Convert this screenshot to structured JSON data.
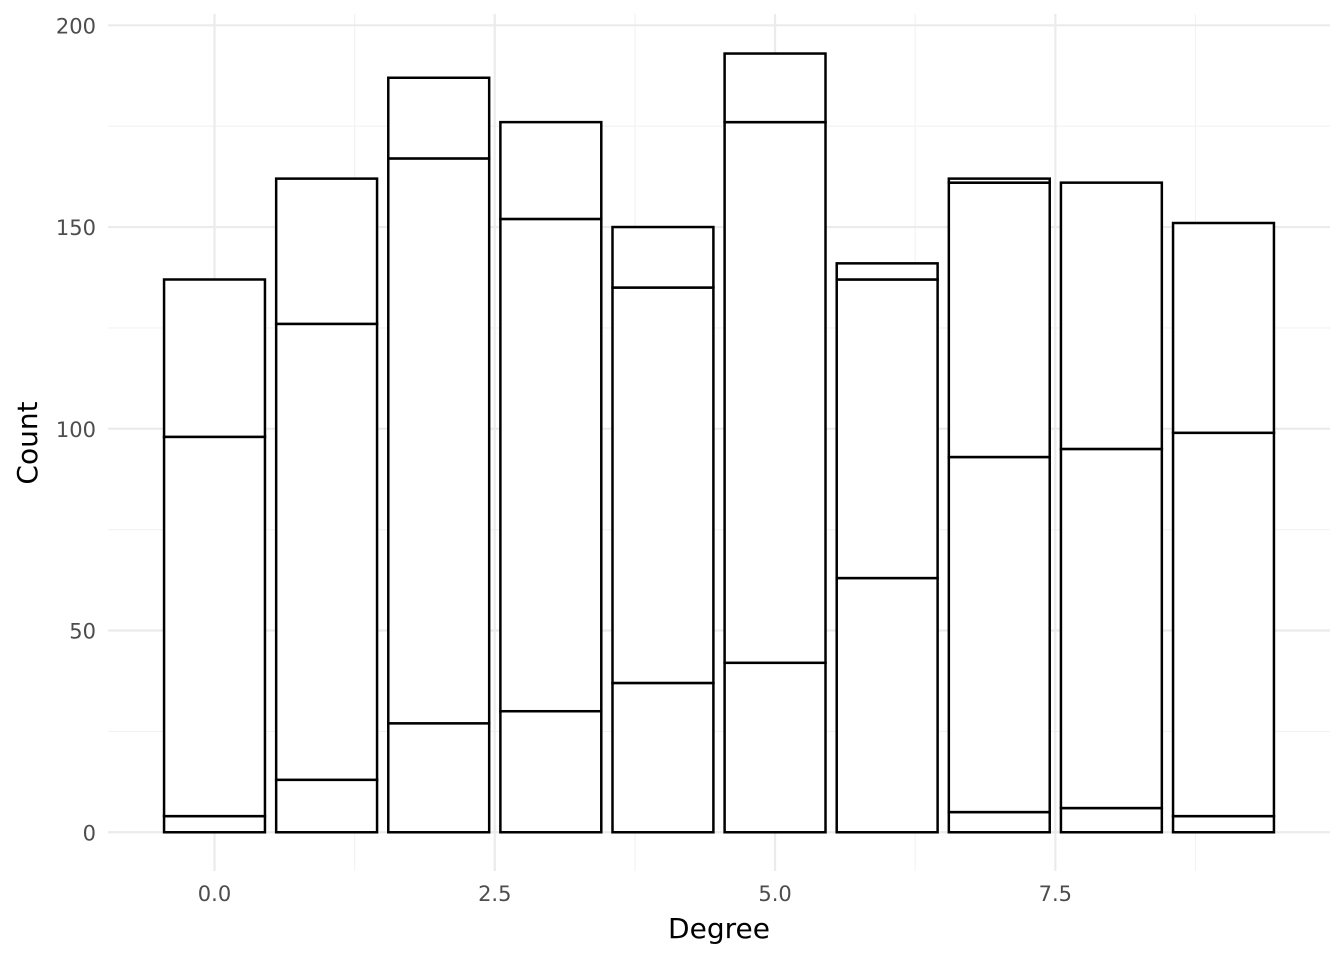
{
  "chart_data": {
    "type": "bar",
    "stacked": true,
    "title": "",
    "xlabel": "Degree",
    "ylabel": "Count",
    "x": [
      0,
      1,
      2,
      3,
      4,
      5,
      6,
      7,
      8,
      9
    ],
    "x_ticks": [
      0.0,
      2.5,
      5.0,
      7.5
    ],
    "x_tick_labels": [
      "0.0",
      "2.5",
      "5.0",
      "7.5"
    ],
    "y_ticks": [
      0,
      50,
      100,
      150,
      200
    ],
    "y_tick_labels": [
      "0",
      "50",
      "100",
      "150",
      "200"
    ],
    "xlim": [
      -0.95,
      9.95
    ],
    "ylim": [
      -9.6,
      202.8
    ],
    "grid": true,
    "legend": "none",
    "colors": {
      "fill": "#ffffff",
      "stroke": "#000000",
      "grid_major": "#ebebeb",
      "grid_minor": "#f2f2f2"
    },
    "series": [
      {
        "values": [
          4,
          13,
          27,
          30,
          37,
          42,
          63,
          5,
          6,
          4
        ]
      },
      {
        "values": [
          94,
          113,
          140,
          122,
          98,
          134,
          74,
          88,
          89,
          95
        ]
      },
      {
        "values": [
          39,
          36,
          20,
          24,
          15,
          17,
          4,
          68,
          66,
          52
        ]
      },
      {
        "values": [
          0,
          0,
          0,
          0,
          0,
          0,
          0,
          1,
          0,
          0
        ]
      }
    ]
  }
}
